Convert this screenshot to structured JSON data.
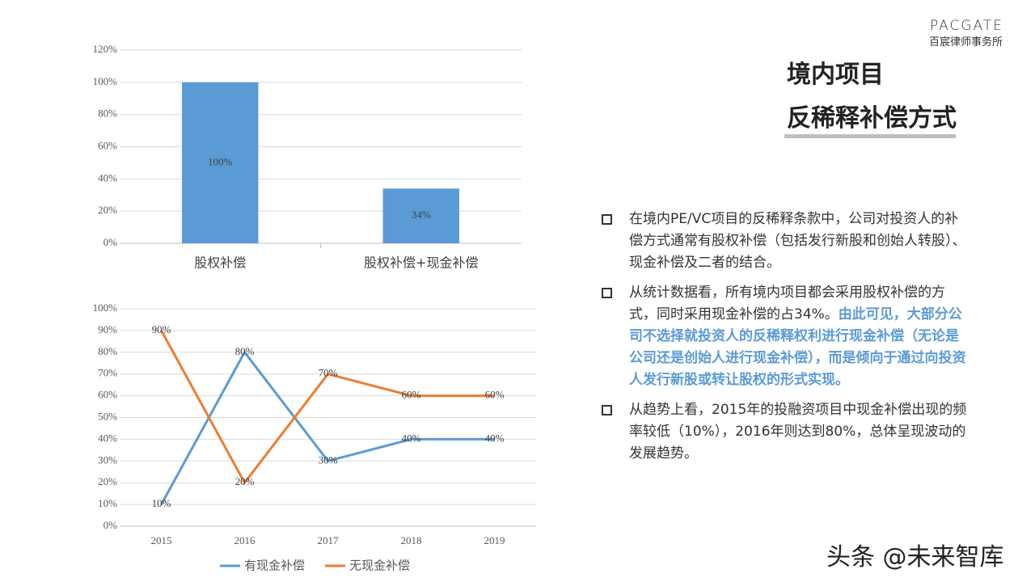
{
  "logo": {
    "name": "PACGATE",
    "subtitle": "百宸律师事务所"
  },
  "title": [
    "境内项目",
    "反稀释补偿方式"
  ],
  "bullets": [
    {
      "text": "在境内PE/VC项目的反稀释条款中，公司对投资人的补偿方式通常有股权补偿（包括发行新股和创始人转股）、现金补偿及二者的结合。"
    },
    {
      "text": "从统计数据看，所有境内项目都会采用股权补偿的方式，同时采用现金补偿的占34%。",
      "highlight": "由此可见，大部分公司不选择就投资人的反稀释权利进行现金补偿（无论是公司还是创始人进行现金补偿），而是倾向于通过向投资人发行新股或转让股权的形式实现。"
    },
    {
      "text": "从趋势上看，2015年的投融资项目中现金补偿出现的频率较低（10%），2016年则达到80%，总体呈现波动的发展趋势。"
    }
  ],
  "watermark": "头条 @未来智库",
  "chart_data": [
    {
      "type": "bar",
      "categories": [
        "股权补偿",
        "股权补偿+现金补偿"
      ],
      "values": [
        100,
        34
      ],
      "value_labels": [
        "100%",
        "34%"
      ],
      "color": "#5b9bd5",
      "ylim": [
        0,
        120
      ],
      "yticks": [
        {
          "value": 0,
          "label": "0%"
        },
        {
          "value": 20,
          "label": "20%"
        },
        {
          "value": 40,
          "label": "40%"
        },
        {
          "value": 60,
          "label": "60%"
        },
        {
          "value": 80,
          "label": "80%"
        },
        {
          "value": 100,
          "label": "100%"
        },
        {
          "value": 120,
          "label": "120%"
        }
      ],
      "grid": true
    },
    {
      "type": "line",
      "categories": [
        "2015",
        "2016",
        "2017",
        "2018",
        "2019"
      ],
      "series": [
        {
          "name": "有现金补偿",
          "color": "#5b9bd5",
          "values": [
            10,
            80,
            30,
            40,
            40
          ],
          "value_labels": [
            "10%",
            "80%",
            "30%",
            "40%",
            "40%"
          ]
        },
        {
          "name": "无现金补偿",
          "color": "#ed7d31",
          "values": [
            90,
            20,
            70,
            60,
            60
          ],
          "value_labels": [
            "90%",
            "20%",
            "70%",
            "60%",
            "60%"
          ]
        }
      ],
      "ylim": [
        0,
        100
      ],
      "yticks": [
        {
          "value": 0,
          "label": "0%"
        },
        {
          "value": 10,
          "label": "10%"
        },
        {
          "value": 20,
          "label": "20%"
        },
        {
          "value": 30,
          "label": "30%"
        },
        {
          "value": 40,
          "label": "40%"
        },
        {
          "value": 50,
          "label": "50%"
        },
        {
          "value": 60,
          "label": "60%"
        },
        {
          "value": 70,
          "label": "70%"
        },
        {
          "value": 80,
          "label": "80%"
        },
        {
          "value": 90,
          "label": "90%"
        },
        {
          "value": 100,
          "label": "100%"
        }
      ],
      "grid": true,
      "legend": "bottom"
    }
  ]
}
